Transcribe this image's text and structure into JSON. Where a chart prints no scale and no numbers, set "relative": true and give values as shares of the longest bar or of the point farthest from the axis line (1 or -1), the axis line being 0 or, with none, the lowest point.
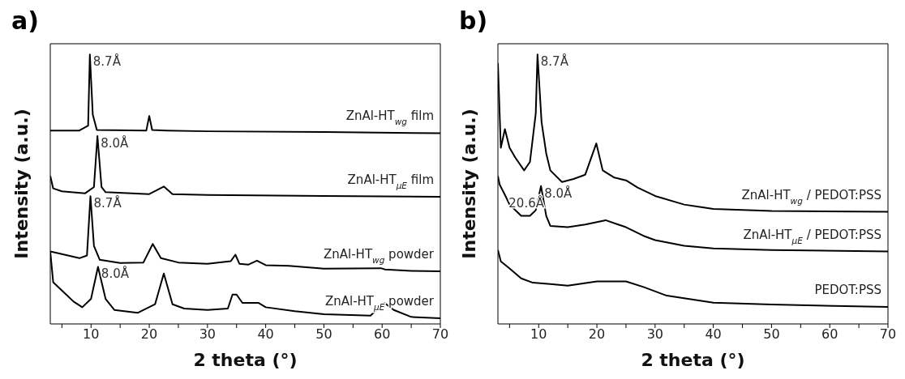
{
  "chart_data": [
    {
      "type": "line",
      "title": "a)",
      "xlabel": "2 theta (°)",
      "ylabel": "Intensity (a.u.)",
      "relative": true,
      "xlim": [
        3,
        70
      ],
      "xticks": [
        {
          "value": 5,
          "label": null
        },
        10,
        {
          "value": 15,
          "label": null
        },
        20,
        {
          "value": 25,
          "label": null
        },
        30,
        {
          "value": 35,
          "label": null
        },
        40,
        {
          "value": 45,
          "label": null
        },
        50,
        {
          "value": 55,
          "label": null
        },
        60,
        {
          "value": 65,
          "label": null
        },
        70
      ],
      "series": [
        {
          "name": "ZnAl-HT$_{wg}$ film",
          "color": "#000000",
          "x": [
            3,
            8,
            9.5,
            9.8,
            10.3,
            11,
            19.5,
            20,
            20.5,
            23,
            30,
            50,
            70
          ],
          "values": [
            0.718,
            0.718,
            0.736,
            1.0,
            0.777,
            0.72,
            0.718,
            0.772,
            0.72,
            0.718,
            0.715,
            0.712,
            0.708
          ]
        },
        {
          "name": "ZnAl-HT$_{µE}$ film",
          "color": "#000000",
          "x": [
            3,
            3.5,
            5,
            9,
            10.5,
            11.1,
            11.8,
            12.5,
            20,
            22.5,
            24,
            30,
            50,
            70
          ],
          "values": [
            0.549,
            0.503,
            0.492,
            0.485,
            0.508,
            0.697,
            0.508,
            0.489,
            0.482,
            0.51,
            0.482,
            0.479,
            0.475,
            0.472
          ]
        },
        {
          "name": "ZnAl-HT$_{wg}$ powder",
          "color": "#000000",
          "x": [
            3,
            5,
            8,
            9.3,
            9.9,
            10.5,
            11.5,
            15,
            19,
            20.6,
            22,
            25,
            30,
            34,
            34.8,
            35.5,
            37,
            38.5,
            40,
            44,
            50,
            59.8,
            60.5,
            65,
            70
          ],
          "values": [
            0.269,
            0.259,
            0.244,
            0.254,
            0.474,
            0.29,
            0.238,
            0.226,
            0.228,
            0.297,
            0.244,
            0.228,
            0.223,
            0.233,
            0.257,
            0.223,
            0.22,
            0.235,
            0.218,
            0.216,
            0.205,
            0.207,
            0.202,
            0.197,
            0.195
          ]
        },
        {
          "name": "ZnAl-HT$_{µE}$ powder",
          "color": "#000000",
          "x": [
            3,
            3.5,
            5,
            7,
            8.5,
            10,
            11.2,
            12.5,
            14,
            18,
            21,
            22.5,
            24,
            26,
            30,
            33.5,
            34.3,
            35,
            36,
            38.8,
            40,
            45,
            50,
            58,
            60.4,
            62,
            65,
            70
          ],
          "values": [
            0.269,
            0.155,
            0.124,
            0.083,
            0.062,
            0.093,
            0.212,
            0.093,
            0.052,
            0.041,
            0.073,
            0.187,
            0.073,
            0.057,
            0.052,
            0.057,
            0.109,
            0.109,
            0.078,
            0.078,
            0.062,
            0.047,
            0.036,
            0.031,
            0.078,
            0.052,
            0.026,
            0.021
          ]
        }
      ],
      "annotations": [
        {
          "text": "8.7Å",
          "x": 9.8,
          "y": 1.0
        },
        {
          "text": "8.0Å",
          "x": 11.1,
          "y": 0.697
        },
        {
          "text": "8.7Å",
          "x": 9.9,
          "y": 0.474
        },
        {
          "text": "8.0Å",
          "x": 11.2,
          "y": 0.212
        }
      ]
    },
    {
      "type": "line",
      "title": "b)",
      "xlabel": "2 theta (°)",
      "ylabel": "Intensity (a.u.)",
      "relative": true,
      "xlim": [
        3,
        70
      ],
      "xticks": [
        {
          "value": 5,
          "label": null
        },
        10,
        {
          "value": 15,
          "label": null
        },
        20,
        {
          "value": 25,
          "label": null
        },
        30,
        {
          "value": 35,
          "label": null
        },
        40,
        {
          "value": 45,
          "label": null
        },
        50,
        {
          "value": 55,
          "label": null
        },
        60,
        {
          "value": 65,
          "label": null
        },
        70
      ],
      "series": [
        {
          "name": "ZnAl-HT$_{wg}$ / PEDOT:PSS",
          "color": "#000000",
          "x": [
            3,
            3.5,
            4.2,
            5,
            6,
            7.5,
            8.5,
            9.5,
            9.8,
            10.5,
            11.3,
            12,
            14,
            16,
            18,
            19.9,
            21,
            23,
            25,
            27,
            30,
            35,
            40,
            50,
            70
          ],
          "values": [
            0.968,
            0.654,
            0.723,
            0.654,
            0.617,
            0.57,
            0.601,
            0.781,
            1.0,
            0.749,
            0.633,
            0.57,
            0.527,
            0.538,
            0.554,
            0.67,
            0.57,
            0.543,
            0.533,
            0.506,
            0.475,
            0.443,
            0.427,
            0.419,
            0.416
          ]
        },
        {
          "name": "ZnAl-HT$_{µE}$ / PEDOT:PSS",
          "color": "#000000",
          "x": [
            3,
            3.3,
            4.3,
            5,
            7,
            8.5,
            9.5,
            10.4,
            11.3,
            12,
            15,
            18,
            21.5,
            25,
            28,
            30,
            35,
            40,
            50,
            70
          ],
          "values": [
            0.549,
            0.517,
            0.475,
            0.443,
            0.401,
            0.401,
            0.422,
            0.512,
            0.401,
            0.364,
            0.359,
            0.369,
            0.385,
            0.359,
            0.327,
            0.311,
            0.29,
            0.28,
            0.274,
            0.269
          ]
        },
        {
          "name": "PEDOT:PSS",
          "color": "#000000",
          "x": [
            3,
            3.5,
            5,
            7,
            9,
            12,
            15,
            20,
            25,
            28,
            32,
            40,
            50,
            70
          ],
          "values": [
            0.274,
            0.232,
            0.206,
            0.169,
            0.153,
            0.148,
            0.142,
            0.158,
            0.158,
            0.137,
            0.105,
            0.079,
            0.072,
            0.063
          ]
        }
      ],
      "annotations": [
        {
          "text": "8.7Å",
          "x": 9.8,
          "y": 1.0
        },
        {
          "text": "20.6Å",
          "x": 4.3,
          "y": 0.475
        },
        {
          "text": "8.0Å",
          "x": 10.4,
          "y": 0.512
        }
      ]
    }
  ]
}
